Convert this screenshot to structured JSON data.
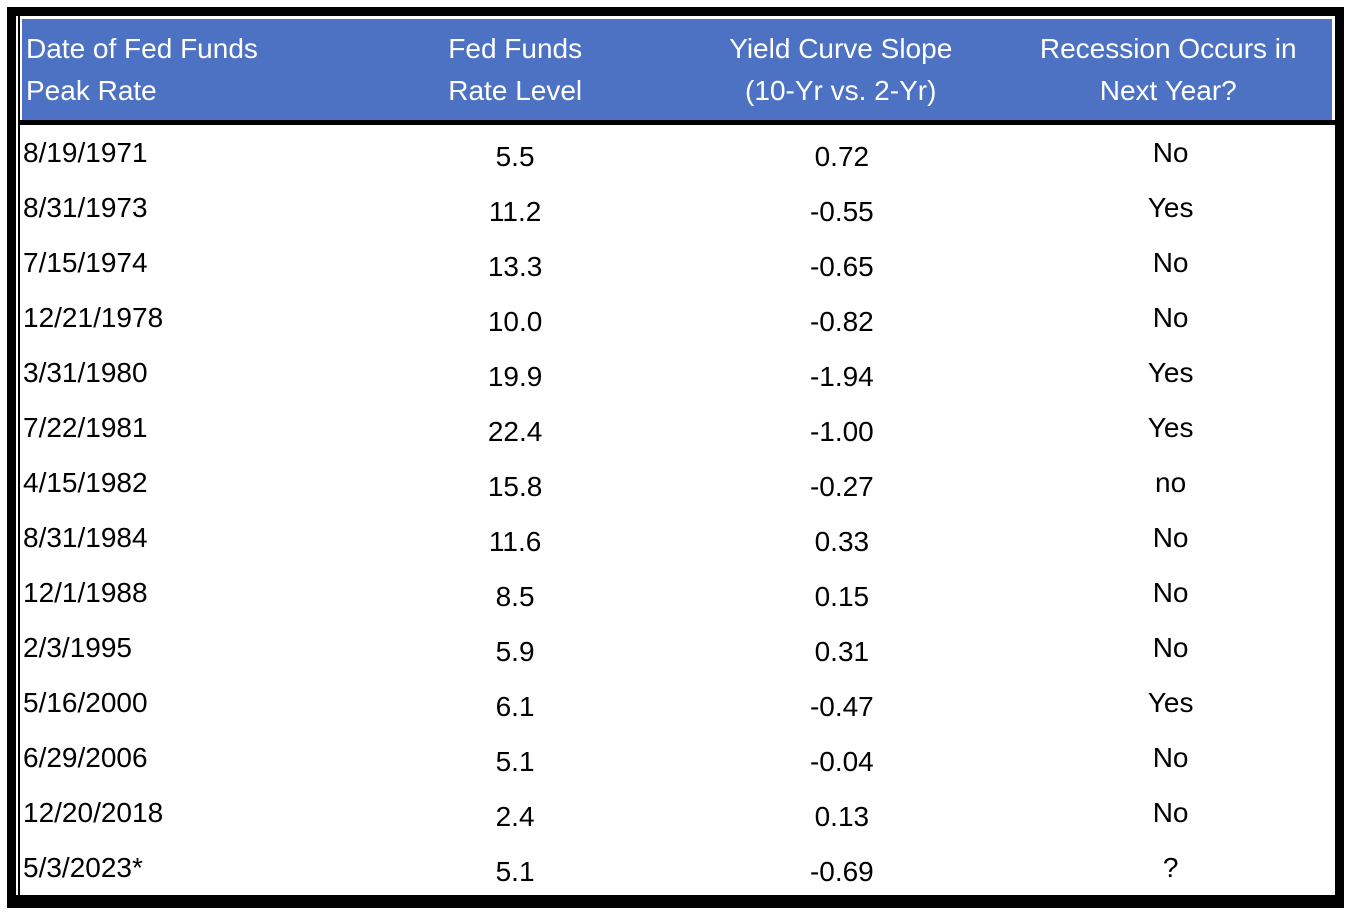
{
  "chart_data": {
    "type": "table",
    "title": "",
    "columns": [
      {
        "line1": "Date of Fed Funds",
        "line2": "Peak Rate"
      },
      {
        "line1": "Fed Funds",
        "line2": "Rate Level"
      },
      {
        "line1": "Yield Curve Slope",
        "line2": "(10-Yr vs. 2-Yr)"
      },
      {
        "line1": "Recession Occurs in",
        "line2": "Next Year?"
      }
    ],
    "rows": [
      {
        "date": "8/19/1971",
        "rate": "5.5",
        "slope": "0.72",
        "recession": "No"
      },
      {
        "date": "8/31/1973",
        "rate": "11.2",
        "slope": "-0.55",
        "recession": "Yes"
      },
      {
        "date": "7/15/1974",
        "rate": "13.3",
        "slope": "-0.65",
        "recession": "No"
      },
      {
        "date": "12/21/1978",
        "rate": "10.0",
        "slope": "-0.82",
        "recession": "No"
      },
      {
        "date": "3/31/1980",
        "rate": "19.9",
        "slope": "-1.94",
        "recession": "Yes"
      },
      {
        "date": "7/22/1981",
        "rate": "22.4",
        "slope": "-1.00",
        "recession": "Yes"
      },
      {
        "date": "4/15/1982",
        "rate": "15.8",
        "slope": "-0.27",
        "recession": "no"
      },
      {
        "date": "8/31/1984",
        "rate": "11.6",
        "slope": "0.33",
        "recession": "No"
      },
      {
        "date": "12/1/1988",
        "rate": "8.5",
        "slope": "0.15",
        "recession": "No"
      },
      {
        "date": "2/3/1995",
        "rate": "5.9",
        "slope": "0.31",
        "recession": "No"
      },
      {
        "date": "5/16/2000",
        "rate": "6.1",
        "slope": "-0.47",
        "recession": "Yes"
      },
      {
        "date": "6/29/2006",
        "rate": "5.1",
        "slope": "-0.04",
        "recession": "No"
      },
      {
        "date": "12/20/2018",
        "rate": "2.4",
        "slope": "0.13",
        "recession": "No"
      },
      {
        "date": "5/3/2023*",
        "rate": "5.1",
        "slope": "-0.69",
        "recession": "?"
      }
    ]
  },
  "colors": {
    "header_bg": "#4d72c4",
    "header_text": "#ffffff",
    "body_text": "#000000",
    "body_bg": "#ffffff",
    "border": "#000000"
  }
}
